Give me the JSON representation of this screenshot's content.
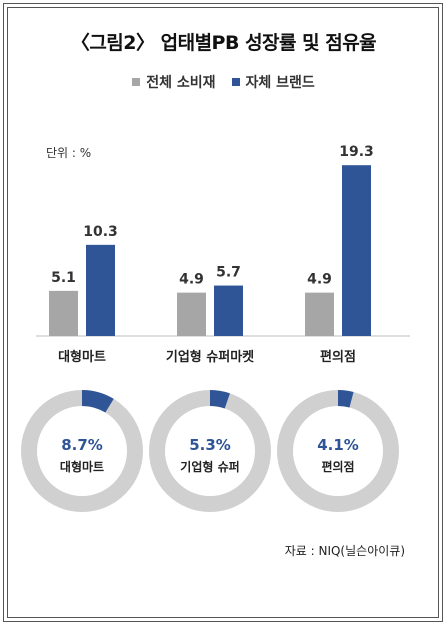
{
  "title": "〈그림2〉 업태별PB 성장률 및 점유율",
  "legend": [
    {
      "label": "전체 소비재",
      "color": "#a6a6a6"
    },
    {
      "label": "자체 브랜드",
      "color": "#2f5597"
    }
  ],
  "unit": "단위 : %",
  "source": "자료 : NIQ(닐슨아이큐)",
  "chart_data": [
    {
      "type": "bar",
      "categories": [
        "대형마트",
        "기업형 슈퍼마켓",
        "편의점"
      ],
      "series": [
        {
          "name": "전체 소비재",
          "values": [
            5.1,
            4.9,
            4.9
          ]
        },
        {
          "name": "자체 브랜드",
          "values": [
            10.3,
            5.7,
            19.3
          ]
        }
      ],
      "value_labels": {
        "전체 소비재": [
          "5.1",
          "4.9",
          "4.9"
        ],
        "자체 브랜드": [
          "10.3",
          "5.7",
          "19.3"
        ]
      },
      "ylim": [
        0,
        20
      ],
      "grid": false
    },
    {
      "type": "pie",
      "style": "donut",
      "donuts": [
        {
          "label": "대형마트",
          "value": 8.7,
          "value_text": "8.7%"
        },
        {
          "label": "기업형 슈퍼",
          "value": 5.3,
          "value_text": "5.3%"
        },
        {
          "label": "편의점",
          "value": 4.1,
          "value_text": "4.1%"
        }
      ],
      "colors": {
        "share": "#2f5597",
        "rest": "#d0d0d0",
        "value_text": "#2f5597"
      }
    }
  ]
}
